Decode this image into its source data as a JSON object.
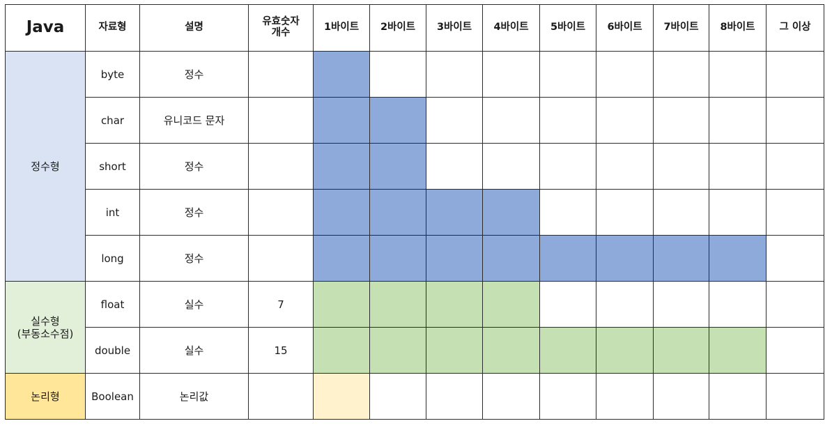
{
  "colors": {
    "group_integer": "#dae3f3",
    "group_real": "#e2efd9",
    "group_boolean": "#ffe699",
    "fill_integer": "#8eaadb",
    "fill_real": "#c5e0b3",
    "fill_boolean": "#fff2cc",
    "border": "#2b2b2b"
  },
  "header": {
    "title": "Java",
    "type": "자료형",
    "description": "설명",
    "significant_digits": "유효숫자\n개수",
    "bytes": [
      "1바이트",
      "2바이트",
      "3바이트",
      "4바이트",
      "5바이트",
      "6바이트",
      "7바이트",
      "8바이트",
      "그 이상"
    ]
  },
  "groups": [
    {
      "label": "정수형",
      "color": "#dae3f3",
      "fill": "#8eaadb",
      "rows": 5
    },
    {
      "label": "실수형\n(부동소수점)",
      "color": "#e2efd9",
      "fill": "#c5e0b3",
      "rows": 2
    },
    {
      "label": "논리형",
      "color": "#ffe699",
      "fill": "#fff2cc",
      "rows": 1
    }
  ],
  "rows": [
    {
      "type": "byte",
      "description": "정수",
      "digits": "",
      "bytes": 1,
      "group": 0
    },
    {
      "type": "char",
      "description": "유니코드 문자",
      "digits": "",
      "bytes": 2,
      "group": 0
    },
    {
      "type": "short",
      "description": "정수",
      "digits": "",
      "bytes": 2,
      "group": 0
    },
    {
      "type": "int",
      "description": "정수",
      "digits": "",
      "bytes": 4,
      "group": 0
    },
    {
      "type": "long",
      "description": "정수",
      "digits": "",
      "bytes": 8,
      "group": 0
    },
    {
      "type": "float",
      "description": "실수",
      "digits": "7",
      "bytes": 4,
      "group": 1
    },
    {
      "type": "double",
      "description": "실수",
      "digits": "15",
      "bytes": 8,
      "group": 1
    },
    {
      "type": "Boolean",
      "description": "논리값",
      "digits": "",
      "bytes": 1,
      "group": 2
    }
  ]
}
